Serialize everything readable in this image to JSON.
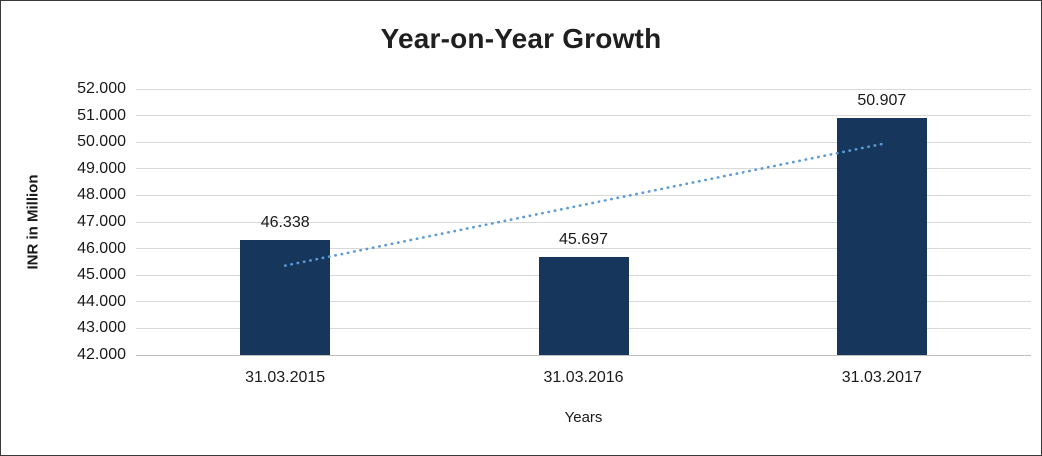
{
  "chart_data": {
    "type": "bar",
    "title": "Year-on-Year Growth",
    "xlabel": "Years",
    "ylabel": "INR in Million",
    "categories": [
      "31.03.2015",
      "31.03.2016",
      "31.03.2017"
    ],
    "values": [
      46.338,
      45.697,
      50.907
    ],
    "data_labels": [
      "46.338",
      "45.697",
      "50.907"
    ],
    "ylim": [
      42,
      52
    ],
    "ytick_step": 1,
    "ytick_labels": [
      "42.000",
      "43.000",
      "44.000",
      "45.000",
      "46.000",
      "47.000",
      "48.000",
      "49.000",
      "50.000",
      "51.000",
      "52.000"
    ],
    "grid": true,
    "legend": "none",
    "bar_color": "#16365C",
    "trendline": {
      "style": "dotted",
      "color": "#5B9BD5",
      "start_value": 45.36,
      "end_value": 49.93
    }
  }
}
